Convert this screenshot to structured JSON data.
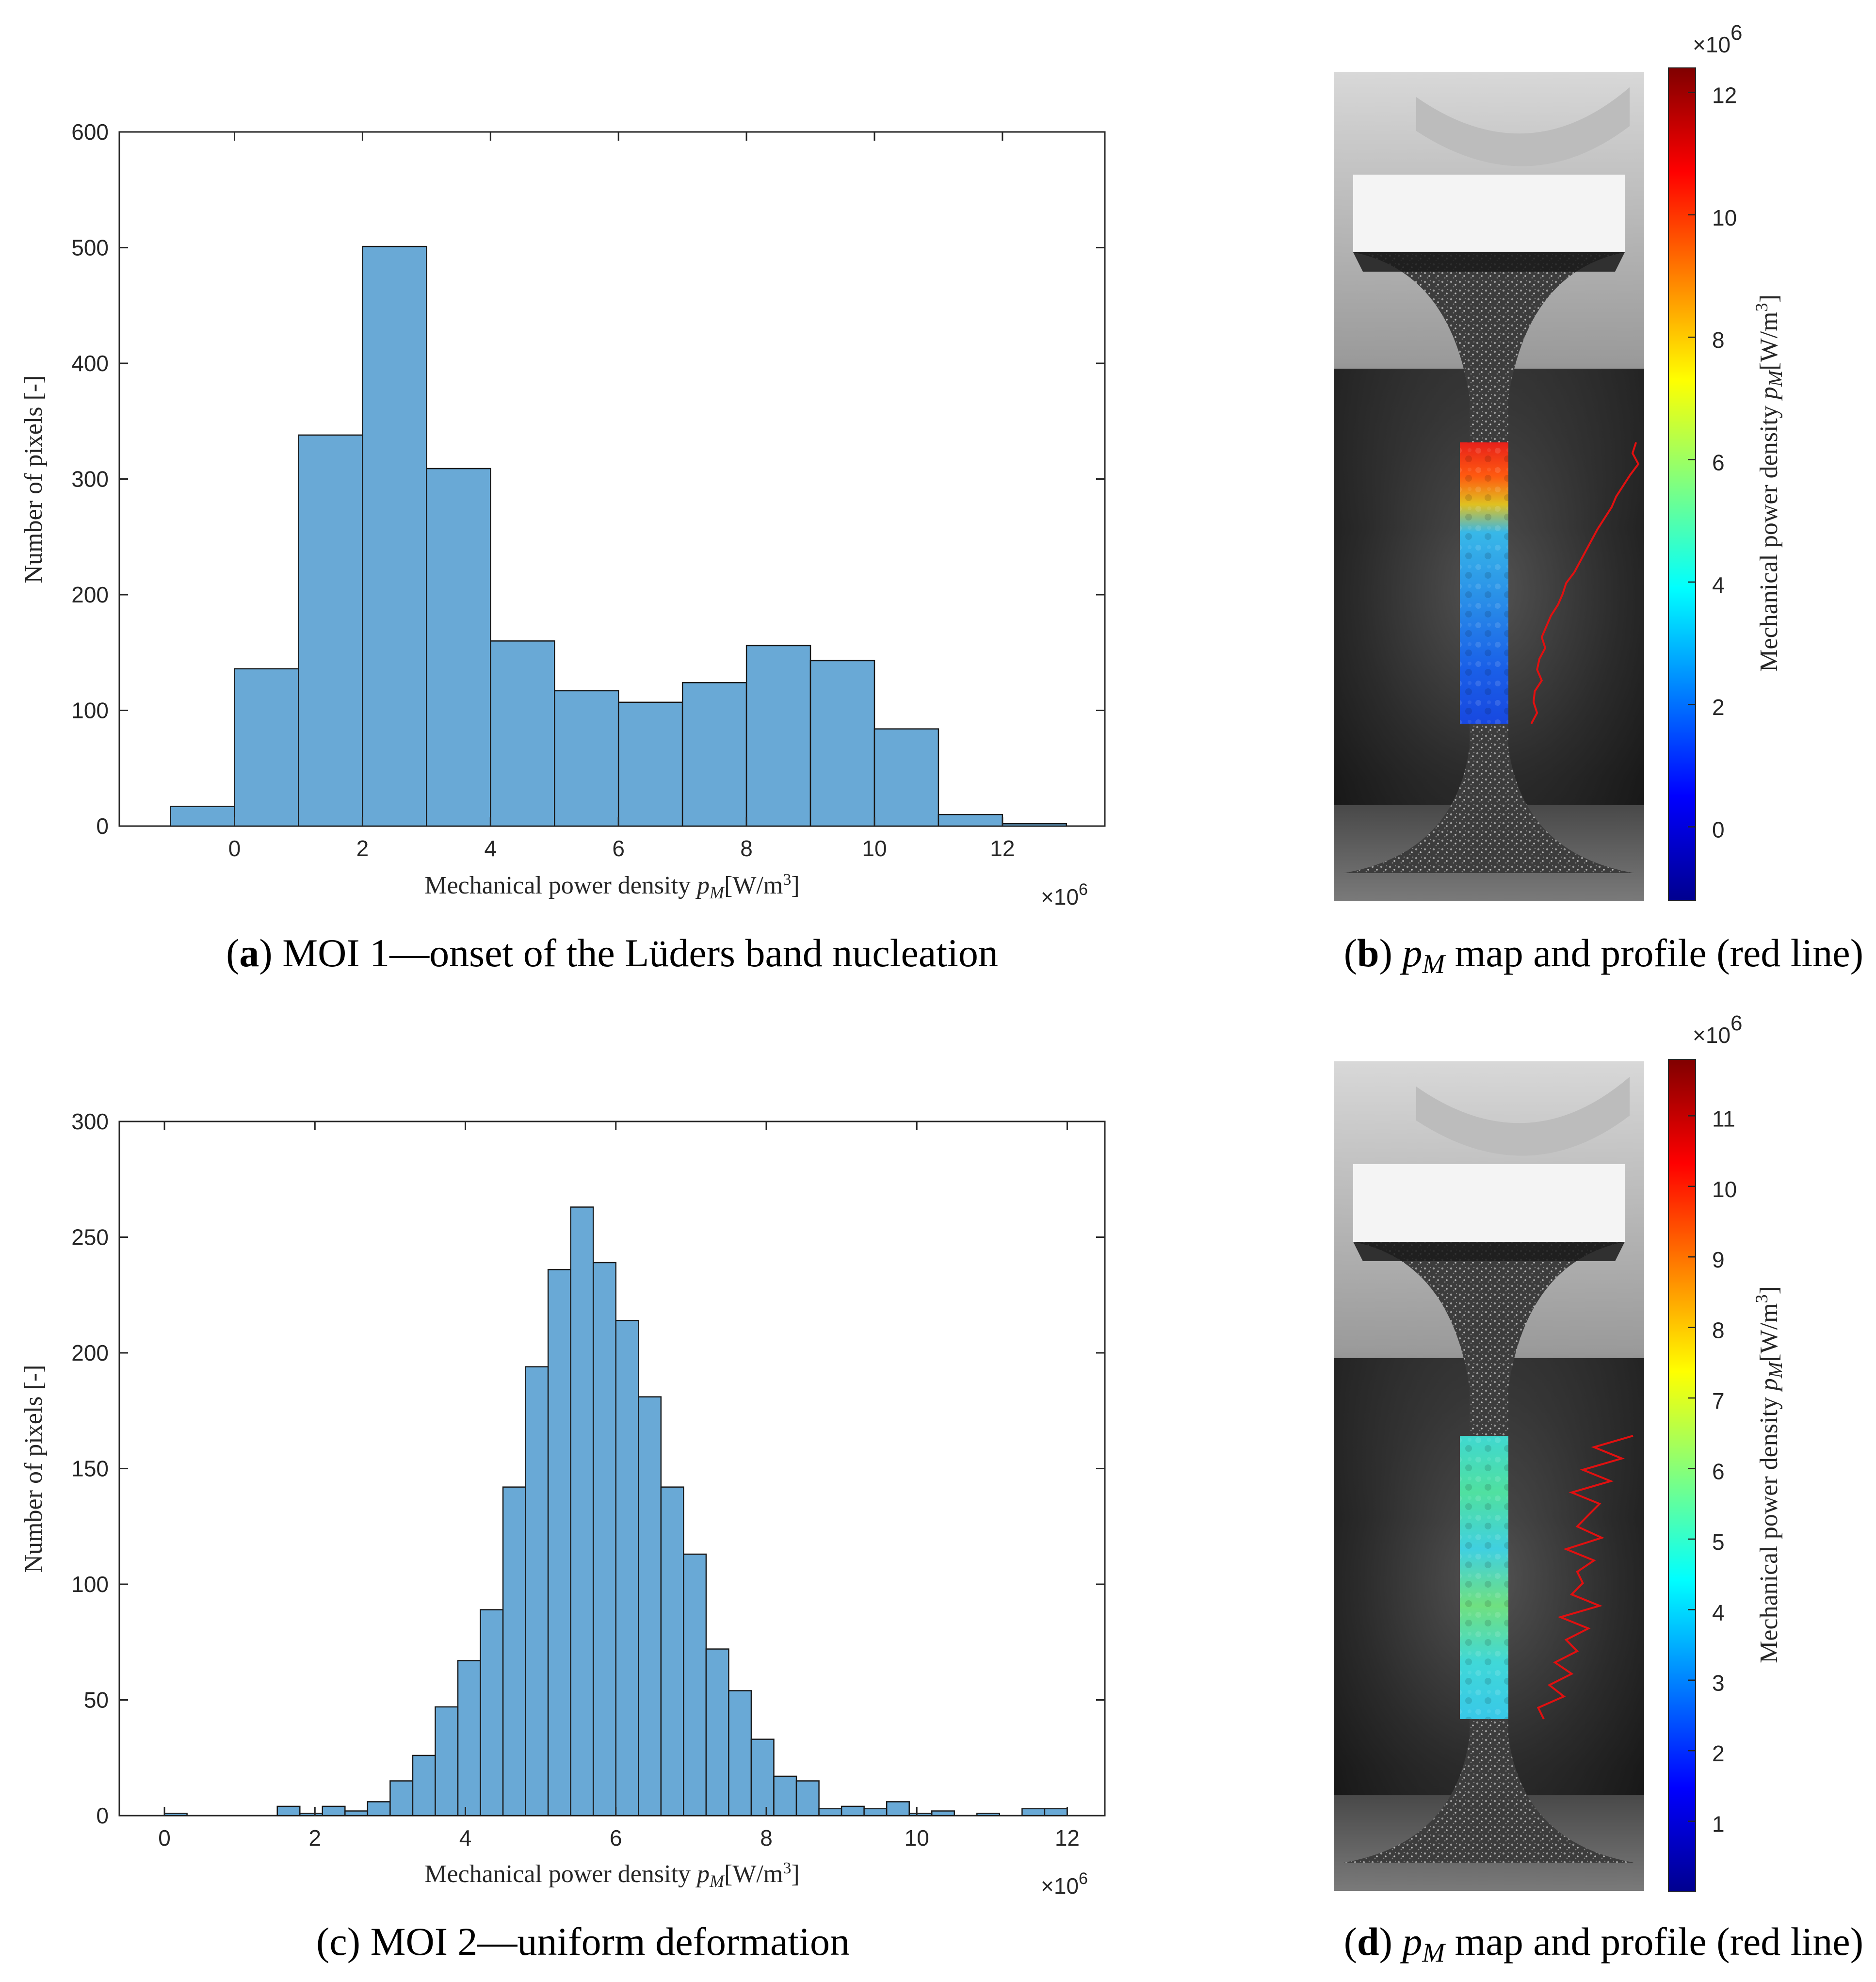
{
  "chart_data": [
    {
      "id": "a",
      "type": "histogram",
      "caption": {
        "letter": "a",
        "text": " MOI 1—onset of the Lüders band nucleation"
      },
      "xlabel": "Mechanical power density p_M[W/m^3]",
      "ylabel": "Number of pixels [-]",
      "x_multiplier": "×10^6",
      "xlim": [
        -1.8,
        13.6
      ],
      "ylim": [
        0,
        600
      ],
      "xticks": [
        0,
        2,
        4,
        6,
        8,
        10,
        12
      ],
      "yticks": [
        0,
        100,
        200,
        300,
        400,
        500,
        600
      ],
      "bin_edges": [
        -1,
        0,
        1,
        2,
        3,
        4,
        5,
        6,
        7,
        8,
        9,
        10,
        11,
        12,
        13
      ],
      "counts": [
        17,
        136,
        338,
        501,
        309,
        160,
        117,
        107,
        124,
        156,
        143,
        84,
        10,
        2
      ],
      "bar_color": "#69A9D6"
    },
    {
      "id": "c",
      "type": "histogram",
      "caption": {
        "letter": "c",
        "text": " MOI 2—uniform deformation"
      },
      "xlabel": "Mechanical power density p_M[W/m^3]",
      "ylabel": "Number of pixels [-]",
      "x_multiplier": "×10^6",
      "xlim": [
        -0.6,
        12.5
      ],
      "ylim": [
        0,
        300
      ],
      "xticks": [
        0,
        2,
        4,
        6,
        8,
        10,
        12
      ],
      "yticks": [
        0,
        50,
        100,
        150,
        200,
        250,
        300
      ],
      "bin_start": 0.0,
      "bin_width": 0.3,
      "counts": [
        1,
        0,
        0,
        0,
        0,
        4,
        1,
        4,
        2,
        6,
        15,
        26,
        47,
        67,
        89,
        142,
        194,
        236,
        263,
        239,
        214,
        181,
        142,
        113,
        72,
        54,
        33,
        17,
        15,
        3,
        4,
        3,
        6,
        1,
        2,
        0,
        1,
        0,
        3,
        3
      ],
      "bar_color": "#69A9D6"
    }
  ],
  "maps": [
    {
      "id": "b",
      "caption": {
        "letter": "b",
        "text": " map and profile (red line)"
      },
      "caption_symbol": "p_M",
      "colorbar_label": "Mechanical power density p_M[W/m^3]",
      "colorbar_multiplier": "×10^6",
      "colorbar_range": [
        -1.2,
        12.4
      ],
      "colorbar_ticks": [
        0,
        2,
        4,
        6,
        8,
        10,
        12
      ],
      "field_trend": "high at top of band, low toward bottom",
      "profile": [
        0.93,
        0.9,
        0.95,
        0.88,
        0.82,
        0.76,
        0.72,
        0.66,
        0.6,
        0.55,
        0.5,
        0.45,
        0.4,
        0.33,
        0.3,
        0.26,
        0.2,
        0.16,
        0.12,
        0.15,
        0.1,
        0.08,
        0.12,
        0.06,
        0.05,
        0.08,
        0.03
      ]
    },
    {
      "id": "d",
      "caption": {
        "letter": "d",
        "text": " map and profile (red line)"
      },
      "caption_symbol": "p_M",
      "colorbar_label": "Mechanical power density p_M[W/m^3]",
      "colorbar_multiplier": "×10^6",
      "colorbar_range": [
        0.0,
        11.8
      ],
      "colorbar_ticks": [
        1,
        2,
        3,
        4,
        5,
        6,
        7,
        8,
        9,
        10,
        11
      ],
      "field_trend": "uniform mid-range",
      "profile": [
        0.9,
        0.55,
        0.8,
        0.45,
        0.7,
        0.35,
        0.6,
        0.5,
        0.4,
        0.62,
        0.3,
        0.55,
        0.4,
        0.45,
        0.35,
        0.6,
        0.25,
        0.5,
        0.3,
        0.4,
        0.2,
        0.35,
        0.15,
        0.28,
        0.05,
        0.1
      ]
    }
  ]
}
